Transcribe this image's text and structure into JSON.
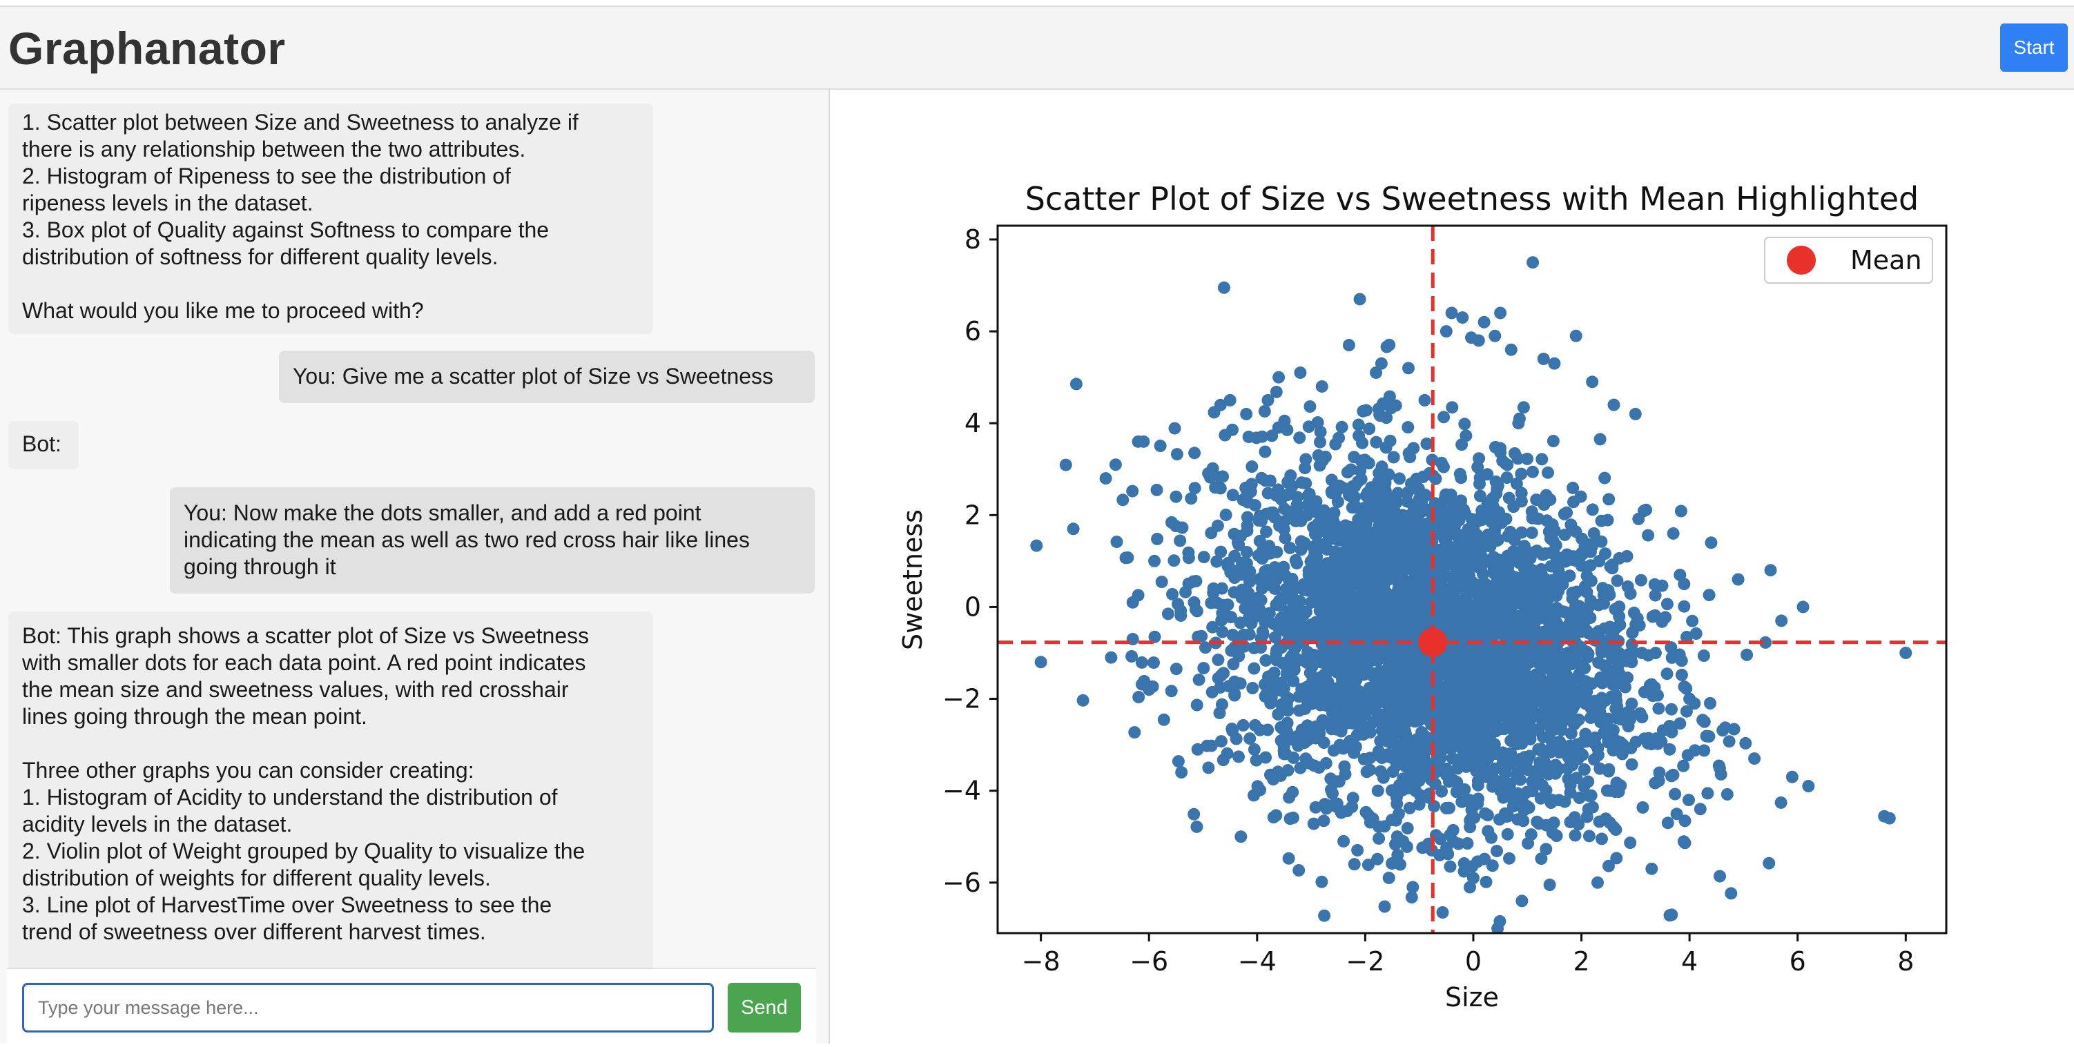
{
  "app": {
    "title": "Graphanator",
    "start_label": "Start"
  },
  "chat": {
    "messages": [
      {
        "role": "bot",
        "text": "1. Scatter plot between Size and Sweetness to analyze if\nthere is any relationship between the two attributes.\n2. Histogram of Ripeness to see the distribution of\nripeness levels in the dataset.\n3. Box plot of Quality against Softness to compare the\ndistribution of softness for different quality levels.\n\nWhat would you like me to proceed with?"
      },
      {
        "role": "user",
        "text": "You: Give me a scatter plot of Size vs Sweetness"
      },
      {
        "role": "bot",
        "text": "Bot:"
      },
      {
        "role": "user",
        "text": "You: Now make the dots smaller, and add a red point\nindicating the mean as well as two red cross hair like lines\ngoing through it"
      },
      {
        "role": "bot",
        "text": "Bot: This graph shows a scatter plot of Size vs Sweetness\nwith smaller dots for each data point. A red point indicates\nthe mean size and sweetness values, with red crosshair\nlines going through the mean point.\n\nThree other graphs you can consider creating:\n1. Histogram of Acidity to understand the distribution of\nacidity levels in the dataset.\n2. Violin plot of Weight grouped by Quality to visualize the\ndistribution of weights for different quality levels.\n3. Line plot of HarvestTime over Sweetness to see the\ntrend of sweetness over different harvest times."
      }
    ],
    "input_placeholder": "Type your message here...",
    "input_value": "",
    "send_label": "Send"
  },
  "chart_data": {
    "type": "scatter",
    "title": "Scatter Plot of Size vs Sweetness with Mean Highlighted",
    "xlabel": "Size",
    "ylabel": "Sweetness",
    "xlim": [
      -8.8,
      8.75
    ],
    "ylim": [
      -7.1,
      8.3
    ],
    "xticks": [
      -8,
      -6,
      -4,
      -2,
      0,
      2,
      4,
      6,
      8
    ],
    "yticks": [
      -6,
      -4,
      -2,
      0,
      2,
      4,
      6,
      8
    ],
    "xtick_labels": [
      "−8",
      "−6",
      "−4",
      "−2",
      "0",
      "2",
      "4",
      "6",
      "8"
    ],
    "ytick_labels": [
      "−6",
      "−4",
      "−2",
      "0",
      "2",
      "4",
      "6",
      "8"
    ],
    "grid": false,
    "legend": {
      "position": "top-right",
      "entries": [
        "Mean"
      ]
    },
    "colors": {
      "points": "#3a74ad",
      "mean": "#e8312a"
    },
    "mean": {
      "x": -0.75,
      "y": -0.77
    },
    "series": [
      {
        "name": "",
        "x": [
          -8.0,
          -7.4,
          -6.8,
          -6.7,
          -6.3,
          -6.3,
          -6.2,
          -6.1,
          -6.0,
          -5.9,
          -5.5,
          -5.4,
          -5.1,
          -4.9,
          -4.5,
          -4.3,
          -4.2,
          -3.8,
          -3.6,
          -3.5,
          -3.2,
          -3.1,
          -2.8,
          -2.4,
          -2.3,
          -2.2,
          -2.1,
          -2.0,
          -1.8,
          -1.7,
          -1.4,
          -1.3,
          -1.2,
          -1.0,
          -0.9,
          -0.8,
          -0.5,
          -0.4,
          -0.2,
          0.0,
          0.1,
          0.2,
          0.4,
          0.5,
          0.7,
          0.9,
          1.1,
          1.3,
          1.5,
          1.9,
          2.2,
          2.3,
          2.6,
          3.0,
          3.3,
          3.6,
          3.7,
          3.9,
          4.0,
          4.2,
          4.4,
          4.9,
          5.2,
          5.5,
          5.7,
          5.9,
          6.1,
          6.2,
          7.7,
          8.0
        ],
        "y": [
          -1.2,
          1.7,
          2.8,
          -1.1,
          0.1,
          -0.7,
          3.6,
          3.6,
          -1.8,
          1.0,
          2.4,
          -3.6,
          -3.1,
          -3.5,
          4.5,
          -5.0,
          4.2,
          4.5,
          5.0,
          -3.2,
          5.1,
          -2.8,
          4.8,
          -5.1,
          5.7,
          -5.6,
          6.7,
          0.5,
          5.1,
          5.3,
          -5.4,
          -5.1,
          5.2,
          -4.3,
          4.5,
          -3.5,
          6.0,
          6.4,
          6.3,
          -5.9,
          5.8,
          6.2,
          5.9,
          6.4,
          5.6,
          -6.4,
          7.5,
          5.4,
          5.3,
          5.9,
          4.9,
          -6.0,
          4.4,
          4.2,
          -5.7,
          -4.7,
          1.6,
          0.5,
          -2.0,
          -4.4,
          1.4,
          0.6,
          -3.3,
          0.8,
          -0.3,
          -3.7,
          0.0,
          -3.9,
          -4.6,
          -1.0
        ]
      }
    ],
    "core": {
      "n": 3600,
      "note": ""
    }
  }
}
